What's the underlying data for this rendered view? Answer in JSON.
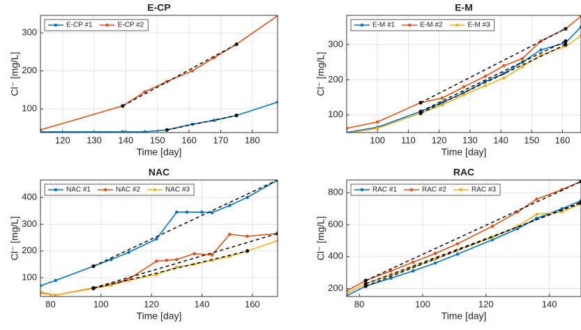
{
  "chart_data": [
    {
      "type": "line",
      "title": "E-CP",
      "xlabel": "Time [day]",
      "ylabel": "Cl⁻ [mg/L]",
      "grid": true,
      "legend": "upper left",
      "xlim": [
        113,
        188
      ],
      "xticks": [
        120,
        130,
        140,
        150,
        160,
        170,
        180
      ],
      "ylim": [
        38,
        346
      ],
      "yticks": [
        100,
        200,
        300
      ],
      "series": [
        {
          "name": "E-CP #1",
          "color": "#0072BD",
          "x": [
            113,
            139,
            146,
            153,
            161,
            168,
            175,
            188
          ],
          "values": [
            40,
            40,
            40,
            45,
            60,
            70,
            83,
            118
          ]
        },
        {
          "name": "E-CP #2",
          "color": "#D95319",
          "x": [
            113,
            139,
            146,
            153,
            161,
            168,
            175,
            188
          ],
          "values": [
            45,
            108,
            145,
            172,
            200,
            235,
            270,
            345
          ]
        }
      ],
      "fits": [
        {
          "x": [
            153,
            175
          ],
          "values": [
            45,
            83
          ]
        },
        {
          "x": [
            139,
            175
          ],
          "values": [
            108,
            270
          ]
        }
      ]
    },
    {
      "type": "line",
      "title": "E-M",
      "xlabel": "Time [day]",
      "ylabel": "Cl⁻ [mg/L]",
      "grid": true,
      "legend": "upper left",
      "xlim": [
        90,
        166
      ],
      "xticks": [
        100,
        110,
        120,
        130,
        140,
        150,
        160
      ],
      "ylim": [
        50,
        383
      ],
      "yticks": [
        100,
        200,
        300
      ],
      "series": [
        {
          "name": "E-M #1",
          "color": "#0072BD",
          "x": [
            90,
            100,
            114,
            121,
            128,
            135,
            141,
            147,
            153,
            161,
            166
          ],
          "values": [
            50,
            65,
            110,
            135,
            163,
            195,
            218,
            250,
            285,
            305,
            350
          ]
        },
        {
          "name": "E-M #2",
          "color": "#D95319",
          "x": [
            90,
            100,
            114,
            121,
            128,
            135,
            141,
            147,
            153,
            161,
            166
          ],
          "values": [
            62,
            80,
            135,
            148,
            180,
            210,
            240,
            260,
            310,
            345,
            380
          ]
        },
        {
          "name": "E-M #3",
          "color": "#EDB120",
          "x": [
            90,
            100,
            114,
            121,
            128,
            135,
            141,
            147,
            153,
            161,
            166
          ],
          "values": [
            48,
            62,
            105,
            128,
            157,
            183,
            205,
            237,
            270,
            295,
            325
          ]
        }
      ],
      "fits": [
        {
          "x": [
            114,
            161
          ],
          "values": [
            110,
            310
          ]
        },
        {
          "x": [
            114,
            161
          ],
          "values": [
            135,
            345
          ]
        },
        {
          "x": [
            114,
            161
          ],
          "values": [
            105,
            300
          ]
        }
      ]
    },
    {
      "type": "line",
      "title": "NAC",
      "xlabel": "Time [day]",
      "ylabel": "Cl⁻ [mg/L]",
      "grid": true,
      "legend": "upper left",
      "xlim": [
        76,
        170
      ],
      "xticks": [
        80,
        100,
        120,
        140,
        160
      ],
      "ylim": [
        30,
        465
      ],
      "yticks": [
        100,
        200,
        300,
        400
      ],
      "series": [
        {
          "name": "NAC #1",
          "color": "#0072BD",
          "x": [
            76,
            82,
            97,
            104,
            111,
            122,
            130,
            134,
            140,
            144,
            151,
            158,
            170
          ],
          "values": [
            70,
            90,
            143,
            168,
            195,
            245,
            345,
            345,
            345,
            343,
            370,
            400,
            465
          ]
        },
        {
          "name": "NAC #2",
          "color": "#D95319",
          "x": [
            76,
            82,
            97,
            104,
            111,
            122,
            126,
            130,
            137,
            144,
            151,
            158,
            170
          ],
          "values": [
            45,
            35,
            62,
            75,
            95,
            162,
            165,
            168,
            190,
            185,
            262,
            255,
            265
          ]
        },
        {
          "name": "NAC #3",
          "color": "#EDB120",
          "x": [
            76,
            82,
            97,
            104,
            111,
            122,
            130,
            137,
            144,
            151,
            158,
            170
          ],
          "values": [
            42,
            35,
            60,
            72,
            90,
            112,
            140,
            150,
            165,
            180,
            200,
            238
          ]
        }
      ],
      "fits": [
        {
          "x": [
            97,
            170
          ],
          "values": [
            143,
            465
          ]
        },
        {
          "x": [
            97,
            170
          ],
          "values": [
            62,
            265
          ]
        },
        {
          "x": [
            97,
            158
          ],
          "values": [
            60,
            200
          ]
        }
      ]
    },
    {
      "type": "line",
      "title": "RAC",
      "xlabel": "Time [day]",
      "ylabel": "Cl⁻ [mg/L]",
      "grid": true,
      "legend": "upper left",
      "xlim": [
        76,
        150
      ],
      "xticks": [
        80,
        100,
        120,
        140
      ],
      "ylim": [
        150,
        880
      ],
      "yticks": [
        200,
        400,
        600,
        800
      ],
      "series": [
        {
          "name": "RAC #1",
          "color": "#0072BD",
          "x": [
            76,
            82,
            90,
            97,
            104,
            111,
            122,
            130,
            136,
            144,
            150
          ],
          "values": [
            155,
            215,
            265,
            310,
            360,
            415,
            505,
            575,
            640,
            700,
            750
          ]
        },
        {
          "name": "RAC #2",
          "color": "#D95319",
          "x": [
            76,
            82,
            90,
            97,
            104,
            111,
            122,
            130,
            136,
            144,
            150
          ],
          "values": [
            185,
            250,
            310,
            365,
            420,
            480,
            590,
            680,
            760,
            820,
            870
          ]
        },
        {
          "name": "RAC #3",
          "color": "#EDB120",
          "x": [
            76,
            82,
            90,
            97,
            104,
            111,
            122,
            130,
            136,
            144,
            150
          ],
          "values": [
            170,
            230,
            285,
            335,
            385,
            440,
            520,
            590,
            665,
            680,
            730
          ]
        }
      ],
      "fits": [
        {
          "x": [
            82,
            150
          ],
          "values": [
            215,
            740
          ]
        },
        {
          "x": [
            82,
            150
          ],
          "values": [
            250,
            870
          ]
        },
        {
          "x": [
            82,
            150
          ],
          "values": [
            230,
            735
          ]
        }
      ]
    }
  ]
}
